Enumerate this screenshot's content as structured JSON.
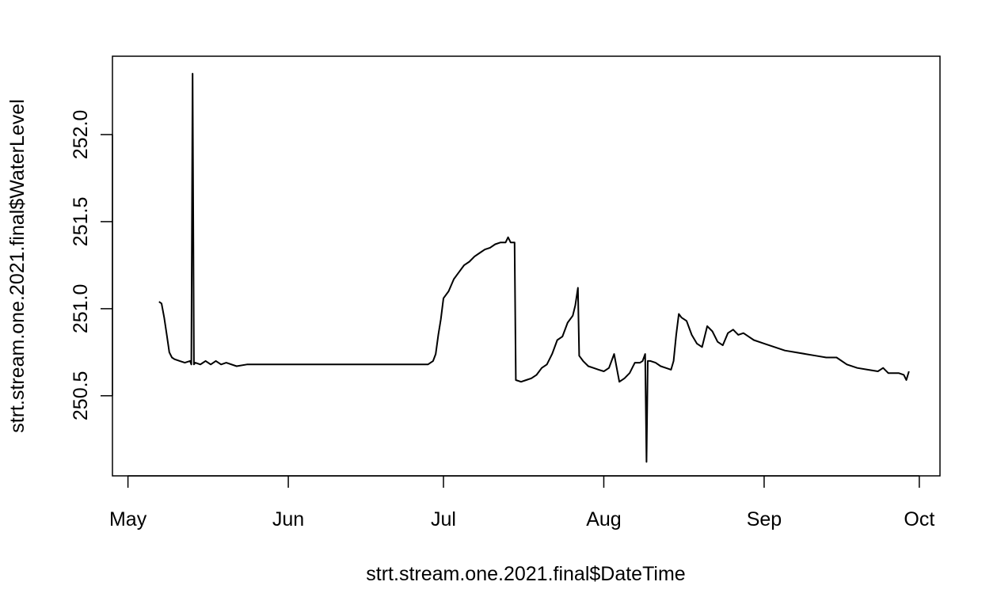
{
  "chart_data": {
    "type": "line",
    "title": "",
    "xlabel": "strt.stream.one.2021.final$DateTime",
    "ylabel": "strt.stream.one.2021.final$WaterLevel",
    "x_ticks": [
      {
        "label": "May",
        "date": "2021-05-01"
      },
      {
        "label": "Jun",
        "date": "2021-06-01"
      },
      {
        "label": "Jul",
        "date": "2021-07-01"
      },
      {
        "label": "Aug",
        "date": "2021-08-01"
      },
      {
        "label": "Sep",
        "date": "2021-09-01"
      },
      {
        "label": "Oct",
        "date": "2021-10-01"
      }
    ],
    "y_ticks": [
      {
        "label": "250.5",
        "value": 250.5
      },
      {
        "label": "251.0",
        "value": 251.0
      },
      {
        "label": "251.5",
        "value": 251.5
      },
      {
        "label": "252.0",
        "value": 252.0
      }
    ],
    "xlim": [
      "2021-04-28",
      "2021-10-05"
    ],
    "ylim": [
      250.04,
      252.45
    ],
    "grid": false,
    "legend": "none",
    "line_color": "#000000",
    "series": [
      {
        "points": [
          [
            "2021-05-07",
            251.04
          ],
          [
            "2021-05-07T12:00",
            251.03
          ],
          [
            "2021-05-08",
            250.95
          ],
          [
            "2021-05-08T12:00",
            250.85
          ],
          [
            "2021-05-09",
            250.75
          ],
          [
            "2021-05-09T12:00",
            250.72
          ],
          [
            "2021-05-10",
            250.71
          ],
          [
            "2021-05-11",
            250.7
          ],
          [
            "2021-05-12",
            250.69
          ],
          [
            "2021-05-13",
            250.7
          ],
          [
            "2021-05-13T06:00",
            250.68
          ],
          [
            "2021-05-13T12:00",
            252.35
          ],
          [
            "2021-05-13T18:00",
            250.68
          ],
          [
            "2021-05-14",
            250.69
          ],
          [
            "2021-05-15",
            250.68
          ],
          [
            "2021-05-16",
            250.7
          ],
          [
            "2021-05-17",
            250.68
          ],
          [
            "2021-05-18",
            250.7
          ],
          [
            "2021-05-19",
            250.68
          ],
          [
            "2021-05-20",
            250.69
          ],
          [
            "2021-05-22",
            250.67
          ],
          [
            "2021-05-24",
            250.68
          ],
          [
            "2021-05-26",
            250.68
          ],
          [
            "2021-05-28",
            250.68
          ],
          [
            "2021-05-30",
            250.68
          ],
          [
            "2021-06-01",
            250.68
          ],
          [
            "2021-06-04",
            250.68
          ],
          [
            "2021-06-07",
            250.68
          ],
          [
            "2021-06-10",
            250.68
          ],
          [
            "2021-06-13",
            250.68
          ],
          [
            "2021-06-16",
            250.68
          ],
          [
            "2021-06-19",
            250.68
          ],
          [
            "2021-06-22",
            250.68
          ],
          [
            "2021-06-25",
            250.68
          ],
          [
            "2021-06-28",
            250.68
          ],
          [
            "2021-06-29",
            250.7
          ],
          [
            "2021-06-29T12:00",
            250.74
          ],
          [
            "2021-06-30",
            250.85
          ],
          [
            "2021-06-30T12:00",
            250.94
          ],
          [
            "2021-07-01",
            251.06
          ],
          [
            "2021-07-02",
            251.1
          ],
          [
            "2021-07-03",
            251.17
          ],
          [
            "2021-07-04",
            251.21
          ],
          [
            "2021-07-05",
            251.25
          ],
          [
            "2021-07-06",
            251.27
          ],
          [
            "2021-07-07",
            251.3
          ],
          [
            "2021-07-08",
            251.32
          ],
          [
            "2021-07-09",
            251.34
          ],
          [
            "2021-07-10",
            251.35
          ],
          [
            "2021-07-11",
            251.37
          ],
          [
            "2021-07-12",
            251.38
          ],
          [
            "2021-07-13",
            251.38
          ],
          [
            "2021-07-13T12:00",
            251.41
          ],
          [
            "2021-07-14",
            251.38
          ],
          [
            "2021-07-14T18:00",
            251.38
          ],
          [
            "2021-07-15",
            250.59
          ],
          [
            "2021-07-16",
            250.58
          ],
          [
            "2021-07-17",
            250.59
          ],
          [
            "2021-07-18",
            250.6
          ],
          [
            "2021-07-19",
            250.62
          ],
          [
            "2021-07-20",
            250.66
          ],
          [
            "2021-07-21",
            250.68
          ],
          [
            "2021-07-22",
            250.74
          ],
          [
            "2021-07-23",
            250.82
          ],
          [
            "2021-07-24",
            250.84
          ],
          [
            "2021-07-25",
            250.92
          ],
          [
            "2021-07-26",
            250.96
          ],
          [
            "2021-07-26T12:00",
            251.02
          ],
          [
            "2021-07-27",
            251.12
          ],
          [
            "2021-07-27T06:00",
            250.73
          ],
          [
            "2021-07-28",
            250.7
          ],
          [
            "2021-07-29",
            250.67
          ],
          [
            "2021-07-30",
            250.66
          ],
          [
            "2021-07-31",
            250.65
          ],
          [
            "2021-08-01",
            250.64
          ],
          [
            "2021-08-02",
            250.66
          ],
          [
            "2021-08-03",
            250.74
          ],
          [
            "2021-08-03T12:00",
            250.66
          ],
          [
            "2021-08-04",
            250.58
          ],
          [
            "2021-08-05",
            250.6
          ],
          [
            "2021-08-06",
            250.63
          ],
          [
            "2021-08-07",
            250.69
          ],
          [
            "2021-08-08",
            250.69
          ],
          [
            "2021-08-08T12:00",
            250.7
          ],
          [
            "2021-08-09",
            250.74
          ],
          [
            "2021-08-09T06:00",
            250.12
          ],
          [
            "2021-08-09T12:00",
            250.7
          ],
          [
            "2021-08-10",
            250.7
          ],
          [
            "2021-08-11",
            250.69
          ],
          [
            "2021-08-12",
            250.67
          ],
          [
            "2021-08-13",
            250.66
          ],
          [
            "2021-08-14",
            250.65
          ],
          [
            "2021-08-14T12:00",
            250.7
          ],
          [
            "2021-08-15",
            250.85
          ],
          [
            "2021-08-15T12:00",
            250.97
          ],
          [
            "2021-08-16",
            250.95
          ],
          [
            "2021-08-17",
            250.93
          ],
          [
            "2021-08-18",
            250.85
          ],
          [
            "2021-08-19",
            250.8
          ],
          [
            "2021-08-20",
            250.78
          ],
          [
            "2021-08-21",
            250.9
          ],
          [
            "2021-08-22",
            250.87
          ],
          [
            "2021-08-23",
            250.81
          ],
          [
            "2021-08-24",
            250.79
          ],
          [
            "2021-08-25",
            250.86
          ],
          [
            "2021-08-26",
            250.88
          ],
          [
            "2021-08-27",
            250.85
          ],
          [
            "2021-08-28",
            250.86
          ],
          [
            "2021-08-29",
            250.84
          ],
          [
            "2021-08-30",
            250.82
          ],
          [
            "2021-09-01",
            250.8
          ],
          [
            "2021-09-03",
            250.78
          ],
          [
            "2021-09-05",
            250.76
          ],
          [
            "2021-09-07",
            250.75
          ],
          [
            "2021-09-09",
            250.74
          ],
          [
            "2021-09-11",
            250.73
          ],
          [
            "2021-09-13",
            250.72
          ],
          [
            "2021-09-15",
            250.72
          ],
          [
            "2021-09-17",
            250.68
          ],
          [
            "2021-09-19",
            250.66
          ],
          [
            "2021-09-21",
            250.65
          ],
          [
            "2021-09-23",
            250.64
          ],
          [
            "2021-09-24",
            250.66
          ],
          [
            "2021-09-25",
            250.63
          ],
          [
            "2021-09-27",
            250.63
          ],
          [
            "2021-09-28",
            250.62
          ],
          [
            "2021-09-28T12:00",
            250.59
          ],
          [
            "2021-09-29",
            250.64
          ]
        ]
      }
    ]
  }
}
